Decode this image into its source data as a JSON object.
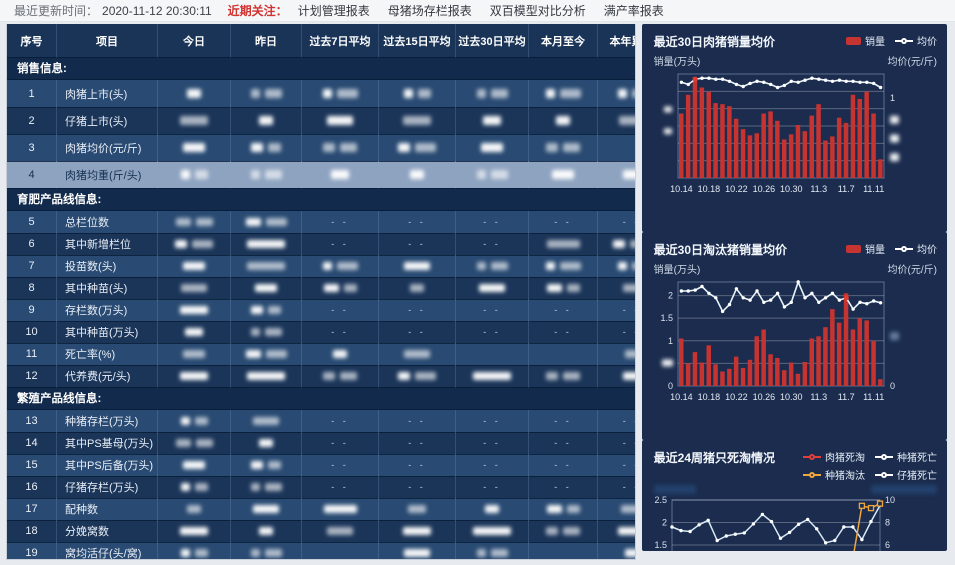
{
  "topbar": {
    "update_label": "最近更新时间：",
    "update_time": "2020-11-12 20:30:11",
    "focus_label": "近期关注：",
    "tabs": [
      "计划管理报表",
      "母猪场存栏报表",
      "双百模型对比分析",
      "满产率报表"
    ]
  },
  "colors": {
    "accent_red": "#d03330",
    "bar_red": "#c63431",
    "highlight_dot_red": "#e23c30",
    "line_white": "#e8f3fb",
    "yellow_line": "#f0a63c",
    "panel_navy": "#1b2c4e",
    "row_light": "#294a72",
    "row_dark": "#1b3559",
    "row_highlight": "#8ea3c0"
  },
  "table": {
    "headers": [
      "序号",
      "项目",
      "今日",
      "昨日",
      "过去7日平均",
      "过去15日平均",
      "过去30日平均",
      "本月至今",
      "本年累计"
    ],
    "highlight_row_no": "4",
    "redaction_note": "all numeric cell values are blurred out in source; 'd' = the visible '- -' placeholder",
    "sections": [
      {
        "title": "销售信息:",
        "rows": [
          {
            "no": "1",
            "name": "肉猪上市(头)",
            "cells": [
              "b1",
              "b2",
              "b2",
              "b2",
              "b2",
              "b2",
              "b2"
            ]
          },
          {
            "no": "2",
            "name": "仔猪上市(头)",
            "cells": [
              "b3",
              "b1",
              "b1",
              "b3",
              "b1",
              "b1",
              "b1"
            ]
          },
          {
            "no": "3",
            "name": "肉猪均价(元/斤)",
            "cells": [
              "b1",
              "b2",
              "b2",
              "b2",
              "b1",
              "b2",
              ""
            ]
          },
          {
            "no": "4",
            "name": "肉猪均重(斤/头)",
            "cells": [
              "b2",
              "b2",
              "b1",
              "b1",
              "b2",
              "b1",
              "b1"
            ]
          }
        ]
      },
      {
        "title": "育肥产品线信息:",
        "rows": [
          {
            "no": "5",
            "name": "总栏位数",
            "cells": [
              "b2",
              "b2",
              "d",
              "d",
              "d",
              "d",
              "d"
            ]
          },
          {
            "no": "6",
            "name": "其中新增栏位",
            "cells": [
              "b2",
              "b3",
              "d",
              "d",
              "d",
              "b3",
              "b2"
            ]
          },
          {
            "no": "7",
            "name": "投苗数(头)",
            "cells": [
              "b1",
              "b3",
              "b2",
              "b1",
              "b2",
              "b2",
              "b2"
            ]
          },
          {
            "no": "8",
            "name": "其中种苗(头)",
            "cells": [
              "b1",
              "b1",
              "b2",
              "b1",
              "b1",
              "b2",
              "b1"
            ]
          },
          {
            "no": "9",
            "name": "存栏数(万头)",
            "cells": [
              "b3",
              "b2",
              "d",
              "d",
              "d",
              "d",
              "d"
            ]
          },
          {
            "no": "10",
            "name": "其中种苗(万头)",
            "cells": [
              "b1",
              "b2",
              "d",
              "d",
              "d",
              "d",
              "d"
            ]
          },
          {
            "no": "11",
            "name": "死亡率(%)",
            "cells": [
              "b1",
              "b2",
              "b1",
              "b1",
              "",
              "",
              "b1"
            ]
          },
          {
            "no": "12",
            "name": "代养费(元/头)",
            "cells": [
              "b3",
              "b3",
              "b2",
              "b2",
              "b3",
              "b2",
              "b1"
            ]
          }
        ]
      },
      {
        "title": "繁殖产品线信息:",
        "rows": [
          {
            "no": "13",
            "name": "种猪存栏(万头)",
            "cells": [
              "b2",
              "b1",
              "d",
              "d",
              "d",
              "d",
              "d"
            ]
          },
          {
            "no": "14",
            "name": "其中PS基母(万头)",
            "cells": [
              "b2",
              "b1",
              "d",
              "d",
              "d",
              "d",
              "d"
            ]
          },
          {
            "no": "15",
            "name": "其中PS后备(万头)",
            "cells": [
              "b1",
              "b2",
              "d",
              "d",
              "d",
              "d",
              "d"
            ]
          },
          {
            "no": "16",
            "name": "仔猪存栏(万头)",
            "cells": [
              "b2",
              "b2",
              "d",
              "d",
              "d",
              "d",
              "d"
            ]
          },
          {
            "no": "17",
            "name": "配种数",
            "cells": [
              "b1",
              "b1",
              "b3",
              "b1",
              "b1",
              "b2",
              "b1"
            ]
          },
          {
            "no": "18",
            "name": "分娩窝数",
            "cells": [
              "b3",
              "b1",
              "b1",
              "b3",
              "b3",
              "b2",
              "b3"
            ]
          },
          {
            "no": "19",
            "name": "窝均活仔(头/窝)",
            "cells": [
              "b2",
              "b2",
              "",
              "b1",
              "b2",
              "",
              "b1"
            ]
          }
        ]
      }
    ]
  },
  "chart_data": [
    {
      "type": "bar+line",
      "title": "最近30日肉猪销量均价",
      "legend": [
        {
          "label": "销量",
          "type": "bar",
          "color": "#c63431"
        },
        {
          "label": "均价",
          "type": "line",
          "color": "#ffffff"
        }
      ],
      "ylabel_left": "销量(万头)",
      "ylabel_right": "均价(元/斤)",
      "x_tick_labels": [
        "10.14",
        "10.18",
        "10.22",
        "10.26",
        "10.30",
        "11.3",
        "11.7",
        "11.11"
      ],
      "axis_note": "y-axis numeric labels are blurred in source except right-axis '1'; values below are relative 0-1 estimates",
      "right_axis_visible_tick": "1",
      "bars_relative": [
        0.62,
        0.8,
        0.97,
        0.87,
        0.83,
        0.72,
        0.71,
        0.69,
        0.57,
        0.47,
        0.41,
        0.43,
        0.62,
        0.64,
        0.55,
        0.37,
        0.42,
        0.51,
        0.45,
        0.6,
        0.71,
        0.36,
        0.4,
        0.58,
        0.53,
        0.8,
        0.76,
        0.83,
        0.62,
        0.18
      ],
      "line_relative": [
        0.92,
        0.9,
        0.95,
        0.96,
        0.96,
        0.95,
        0.95,
        0.93,
        0.9,
        0.88,
        0.91,
        0.93,
        0.92,
        0.9,
        0.87,
        0.89,
        0.93,
        0.92,
        0.94,
        0.96,
        0.95,
        0.94,
        0.93,
        0.94,
        0.93,
        0.93,
        0.92,
        0.92,
        0.91,
        0.87
      ],
      "highlight_index": 2
    },
    {
      "type": "bar+line",
      "title": "最近30日淘汰猪销量均价",
      "legend": [
        {
          "label": "销量",
          "type": "bar",
          "color": "#c63431"
        },
        {
          "label": "均价",
          "type": "line",
          "color": "#ffffff"
        }
      ],
      "ylabel_left": "销量(万头)",
      "ylabel_right": "均价(元/斤)",
      "x_tick_labels": [
        "10.14",
        "10.18",
        "10.22",
        "10.26",
        "10.30",
        "11.3",
        "11.7",
        "11.11"
      ],
      "left_ticks": [
        "2",
        "1.5",
        "1",
        "0.5",
        "0"
      ],
      "right_bottom_tick": "0",
      "ylim_left": [
        0,
        2.3
      ],
      "bars_wantou": [
        1.05,
        0.5,
        0.75,
        0.52,
        0.9,
        0.48,
        0.32,
        0.38,
        0.65,
        0.4,
        0.58,
        1.1,
        1.25,
        0.7,
        0.62,
        0.35,
        0.52,
        0.27,
        0.53,
        1.05,
        1.1,
        1.3,
        1.7,
        1.4,
        2.05,
        1.25,
        1.5,
        1.45,
        1.0,
        0.15
      ],
      "line_left_units": [
        2.1,
        2.1,
        2.12,
        2.2,
        2.05,
        1.95,
        1.65,
        1.8,
        2.15,
        1.95,
        1.9,
        2.1,
        1.85,
        1.9,
        2.05,
        1.75,
        1.85,
        2.3,
        1.95,
        2.05,
        1.85,
        1.95,
        2.05,
        1.9,
        1.95,
        1.7,
        1.85,
        1.82,
        1.88,
        1.84
      ],
      "highlight_index": 24
    },
    {
      "type": "line",
      "title": "最近24周猪只死淘情况",
      "legend": [
        {
          "label": "肉猪死淘",
          "type": "line",
          "color": "#e0403a"
        },
        {
          "label": "种猪死亡",
          "type": "line",
          "color": "#ffffff"
        },
        {
          "label": "种猪淘汰",
          "type": "line",
          "color": "#f0a63c"
        },
        {
          "label": "仔猪死亡",
          "type": "line",
          "color": "#ffffff"
        }
      ],
      "axis_note": "both axis titles are blurred in source; chart bottom is cut off by viewport",
      "left_ticks": [
        "2.5",
        "2",
        "1.5"
      ],
      "right_ticks": [
        "10",
        "8",
        "6"
      ],
      "series": [
        {
          "name": "white_line_series",
          "color": "#d8eaf8",
          "values": [
            1.9,
            1.82,
            1.8,
            1.95,
            2.05,
            1.6,
            1.7,
            1.74,
            1.77,
            1.97,
            2.18,
            2.02,
            1.65,
            1.78,
            1.96,
            2.07,
            1.86,
            1.55,
            1.6,
            1.9,
            1.9,
            1.62,
            2.02,
            2.38
          ]
        },
        {
          "name": "种猪淘汰(yellow_spike)",
          "color": "#f0a63c",
          "values": [
            null,
            null,
            null,
            null,
            null,
            null,
            null,
            null,
            null,
            null,
            null,
            null,
            null,
            null,
            null,
            null,
            null,
            null,
            null,
            null,
            1.2,
            2.37,
            2.32,
            2.42
          ]
        }
      ]
    }
  ]
}
